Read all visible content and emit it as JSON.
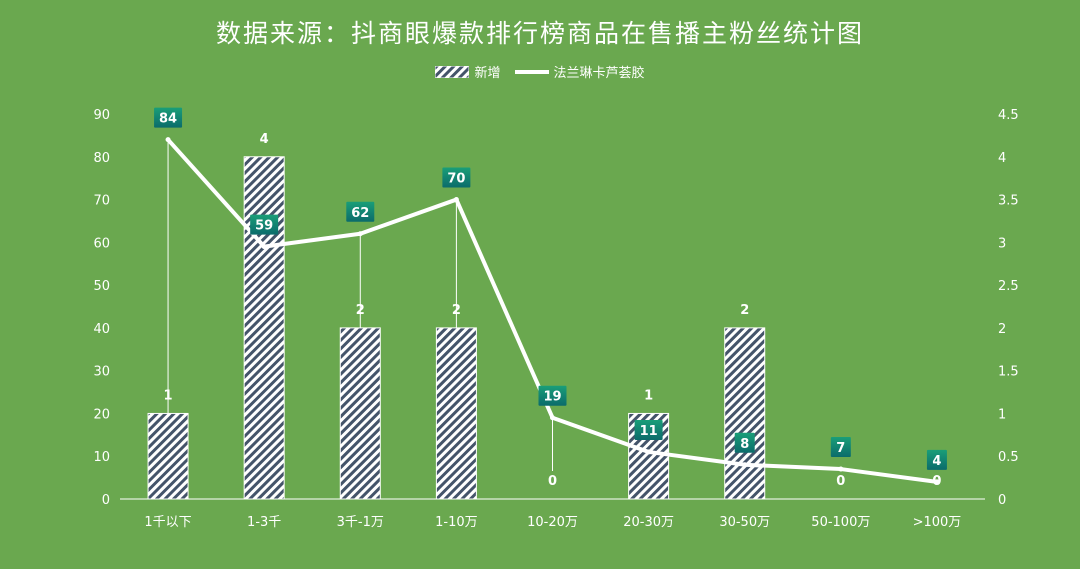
{
  "chart_data": {
    "type": "bar",
    "title": "数据来源：抖商眼爆款排行榜商品在售播主粉丝统计图",
    "categories": [
      "1千以下",
      "1-3千",
      "3千-1万",
      "1-10万",
      "10-20万",
      "20-30万",
      "30-50万",
      "50-100万",
      ">100万"
    ],
    "series": [
      {
        "name": "新增",
        "kind": "bar",
        "axis": "right",
        "values": [
          1,
          4,
          2,
          2,
          0,
          1,
          2,
          0,
          0
        ],
        "labels": [
          "1",
          "4",
          "2",
          "2",
          "0",
          "1",
          "2",
          "0",
          "0"
        ]
      },
      {
        "name": "法兰琳卡芦荟胶",
        "kind": "line",
        "axis": "left",
        "values": [
          84,
          59,
          62,
          70,
          19,
          11,
          8,
          7,
          4
        ],
        "labels": [
          "84",
          "59",
          "62",
          "70",
          "19",
          "11",
          "8",
          "7",
          "4"
        ]
      }
    ],
    "y_left": {
      "range": [
        0,
        90
      ],
      "ticks": [
        "0",
        "10",
        "20",
        "30",
        "40",
        "50",
        "60",
        "70",
        "80",
        "90"
      ]
    },
    "y_right": {
      "range": [
        0,
        4.5
      ],
      "ticks": [
        "0",
        "0.5",
        "1",
        "1.5",
        "2",
        "2.5",
        "3",
        "3.5",
        "4",
        "4.5"
      ]
    },
    "grid": false,
    "legend_position": "top-center",
    "colors": {
      "background": "#6aa84f",
      "bar_fill": "#ffffff",
      "bar_hatch": "#44546a",
      "line": "#ffffff",
      "label_box": "#1a9e78",
      "label_box_dark": "#0b6b6b"
    }
  }
}
